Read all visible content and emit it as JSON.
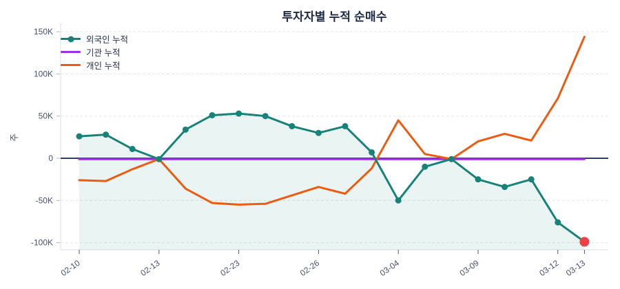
{
  "chart_data": {
    "type": "line",
    "title": "투자자별 누적 순매수",
    "ylabel": "주",
    "legend_position": "top-left-inside",
    "grid": "dashed horizontal",
    "x_point_count": 20,
    "x_tick_indices": [
      0,
      3,
      6,
      9,
      12,
      15,
      18,
      19
    ],
    "x_tick_labels": [
      "02-10",
      "02-13",
      "02-23",
      "02-26",
      "03-04",
      "03-09",
      "03-12",
      "03-13"
    ],
    "y_ticks": [
      150,
      100,
      50,
      0,
      -50,
      -100
    ],
    "y_tick_labels": [
      "150K",
      "100K",
      "50K",
      "0",
      "-50K",
      "-100K"
    ],
    "y_range": [
      -108,
      160
    ],
    "value_unit": "K",
    "series": [
      {
        "name": "외국인 누적",
        "color": "#17827a",
        "markers": true,
        "fill_to_bottom": true,
        "fill_color": "rgba(23,130,122,0.09)",
        "values": [
          26,
          28,
          11,
          -1,
          34,
          51,
          53,
          50,
          38,
          30,
          38,
          7,
          -50,
          -10,
          -1,
          -25,
          -34,
          -25,
          -76,
          -99
        ]
      },
      {
        "name": "기관 누적",
        "color": "#9a31e8",
        "markers": false,
        "values": [
          -1,
          -1,
          -1,
          -1,
          -1,
          -1,
          -1,
          -1,
          -1,
          -1,
          -1,
          -1,
          -1,
          -1,
          -1,
          -1,
          -1,
          -1,
          -1,
          -1
        ]
      },
      {
        "name": "개인 누적",
        "color": "#ee5a0f",
        "markers": false,
        "values": [
          -26,
          -27,
          -13,
          -1,
          -36,
          -53,
          -55,
          -54,
          -44,
          -34,
          -42,
          -12,
          45,
          5,
          -1,
          20,
          29,
          21,
          71,
          144
        ]
      }
    ],
    "last_point_highlight": {
      "series": "외국인 누적",
      "index": 19,
      "value": -99,
      "color": "#ee4143"
    },
    "colors": {
      "zero_line": "#2c3e5d",
      "gridline": "#e4e6eb",
      "axis_line": "#dcdfe5",
      "tick_text": "#44536f",
      "title_text": "#1d2947"
    }
  }
}
